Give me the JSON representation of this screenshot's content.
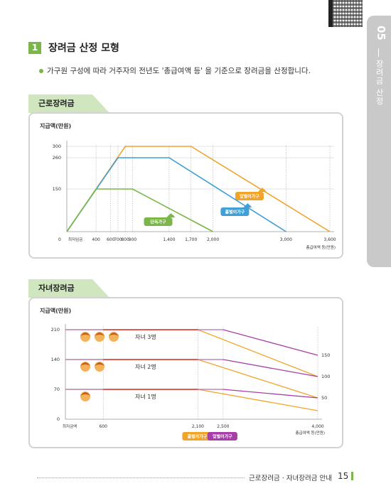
{
  "header": {
    "chapter_number": "05",
    "chapter_title": "장려금 산정",
    "section_number": "1",
    "section_title": "장려금 산정 모형",
    "bullet": "가구원 구성에 따라 거주자의 전년도 '총급여액 등' 을 기준으로  장려금을 산정합니다."
  },
  "footer": {
    "text": "근로장려금 · 자녀장려금 안내",
    "page": "15"
  },
  "chart_data": [
    {
      "type": "line",
      "tab": "근로장려금",
      "ylabel": "지급액(만원)",
      "xlabel": "총급여액 등(만원)",
      "x_start_label": "최저임금",
      "x_ticks": [
        "0",
        "400",
        "600",
        "700",
        "800",
        "900",
        "1,400",
        "1,700",
        "2,000",
        "3,000",
        "3,600"
      ],
      "y_ticks": [
        "300",
        "260",
        "150"
      ],
      "series": [
        {
          "name": "맞벌이가구",
          "color": "#f0a42a",
          "points": [
            [
              0,
              0
            ],
            [
              800,
              300
            ],
            [
              1700,
              300
            ],
            [
              3600,
              0
            ]
          ]
        },
        {
          "name": "홑벌이가구",
          "color": "#3f9fd6",
          "points": [
            [
              0,
              0
            ],
            [
              700,
              260
            ],
            [
              1400,
              260
            ],
            [
              3000,
              0
            ]
          ]
        },
        {
          "name": "단독가구",
          "color": "#7ab648",
          "points": [
            [
              0,
              0
            ],
            [
              400,
              150
            ],
            [
              900,
              150
            ],
            [
              2000,
              0
            ]
          ]
        }
      ]
    },
    {
      "type": "line",
      "tab": "자녀장려금",
      "ylabel": "지급액(만원)",
      "xlabel": "총급여액 등(만원)",
      "x_start_label": "최저금액",
      "x_ticks": [
        "600",
        "2,100",
        "2,500",
        "4,000"
      ],
      "y_ticks": [
        "210",
        "140",
        "70",
        "0"
      ],
      "right_values": [
        "150",
        "100",
        "50"
      ],
      "rows": [
        {
          "label": "자녀 3명",
          "kids": 3
        },
        {
          "label": "자녀 2명",
          "kids": 2
        },
        {
          "label": "자녀 1명",
          "kids": 1
        }
      ],
      "series": [
        {
          "name": "홑벌이가구",
          "color": "#f0a42a",
          "points": [
            [
              [
                0,
                210
              ],
              [
                2100,
                210
              ],
              [
                4000,
                100
              ]
            ],
            [
              [
                0,
                140
              ],
              [
                2100,
                140
              ],
              [
                4000,
                50
              ]
            ],
            [
              [
                0,
                70
              ],
              [
                2100,
                70
              ],
              [
                4000,
                20
              ]
            ]
          ]
        },
        {
          "name": "맞벌이가구",
          "color": "#a63fa8",
          "points": [
            [
              [
                0,
                210
              ],
              [
                2500,
                210
              ],
              [
                4000,
                150
              ]
            ],
            [
              [
                0,
                140
              ],
              [
                2500,
                140
              ],
              [
                4000,
                100
              ]
            ],
            [
              [
                0,
                70
              ],
              [
                2500,
                70
              ],
              [
                4000,
                50
              ]
            ]
          ]
        }
      ],
      "colors": {
        "red_line": "#e23a2a",
        "grid": "#bdbdbd"
      }
    }
  ]
}
